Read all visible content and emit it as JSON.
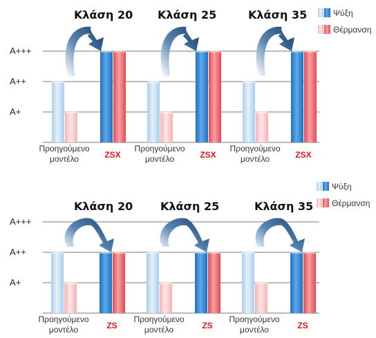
{
  "chart_data": [
    {
      "type": "bar",
      "levels": [
        "A+",
        "A++",
        "A+++"
      ],
      "group_titles": [
        "Κλάση 20",
        "Κλάση 25",
        "Κλάση 35"
      ],
      "categories": [
        [
          "Προηγούμενο",
          "μοντέλο"
        ],
        [
          "ZSX"
        ],
        [
          "Προηγούμενο",
          "μοντέλο"
        ],
        [
          "ZSX"
        ],
        [
          "Προηγούμενο",
          "μοντέλο"
        ],
        [
          "ZSX"
        ]
      ],
      "series": [
        {
          "name": "Ψύξη",
          "values": [
            2,
            3,
            2,
            3,
            2,
            3
          ]
        },
        {
          "name": "Θέρμανση",
          "values": [
            1,
            3,
            1,
            3,
            1,
            3
          ]
        }
      ],
      "ylim": [
        0,
        3
      ],
      "grid": true,
      "legend": "top-right"
    },
    {
      "type": "bar",
      "levels": [
        "A+",
        "A++",
        "A+++"
      ],
      "group_titles": [
        "Κλάση 20",
        "Κλάση 25",
        "Κλάση 35"
      ],
      "categories": [
        [
          "Προηγούμενο",
          "μοντέλο"
        ],
        [
          "ZS"
        ],
        [
          "Προηγούμενο",
          "μοντέλο"
        ],
        [
          "ZS"
        ],
        [
          "Προηγούμενο",
          "μοντέλο"
        ],
        [
          "ZS"
        ]
      ],
      "series": [
        {
          "name": "Ψύξη",
          "values": [
            2,
            2,
            2,
            2,
            2,
            2
          ]
        },
        {
          "name": "Θέρμανση",
          "values": [
            1,
            2,
            1,
            2,
            1,
            2
          ]
        }
      ],
      "ylim": [
        0,
        3
      ],
      "grid": true,
      "legend": "top-right"
    }
  ],
  "colors": {
    "cooling_new": "#2f86d6",
    "cooling_old": "#b9d7f3",
    "heating_new": "#ef6b70",
    "heating_old": "#f9c9cb",
    "arrow": "#1d4f82",
    "grid": "#777777",
    "new_label": "#e2141c"
  }
}
